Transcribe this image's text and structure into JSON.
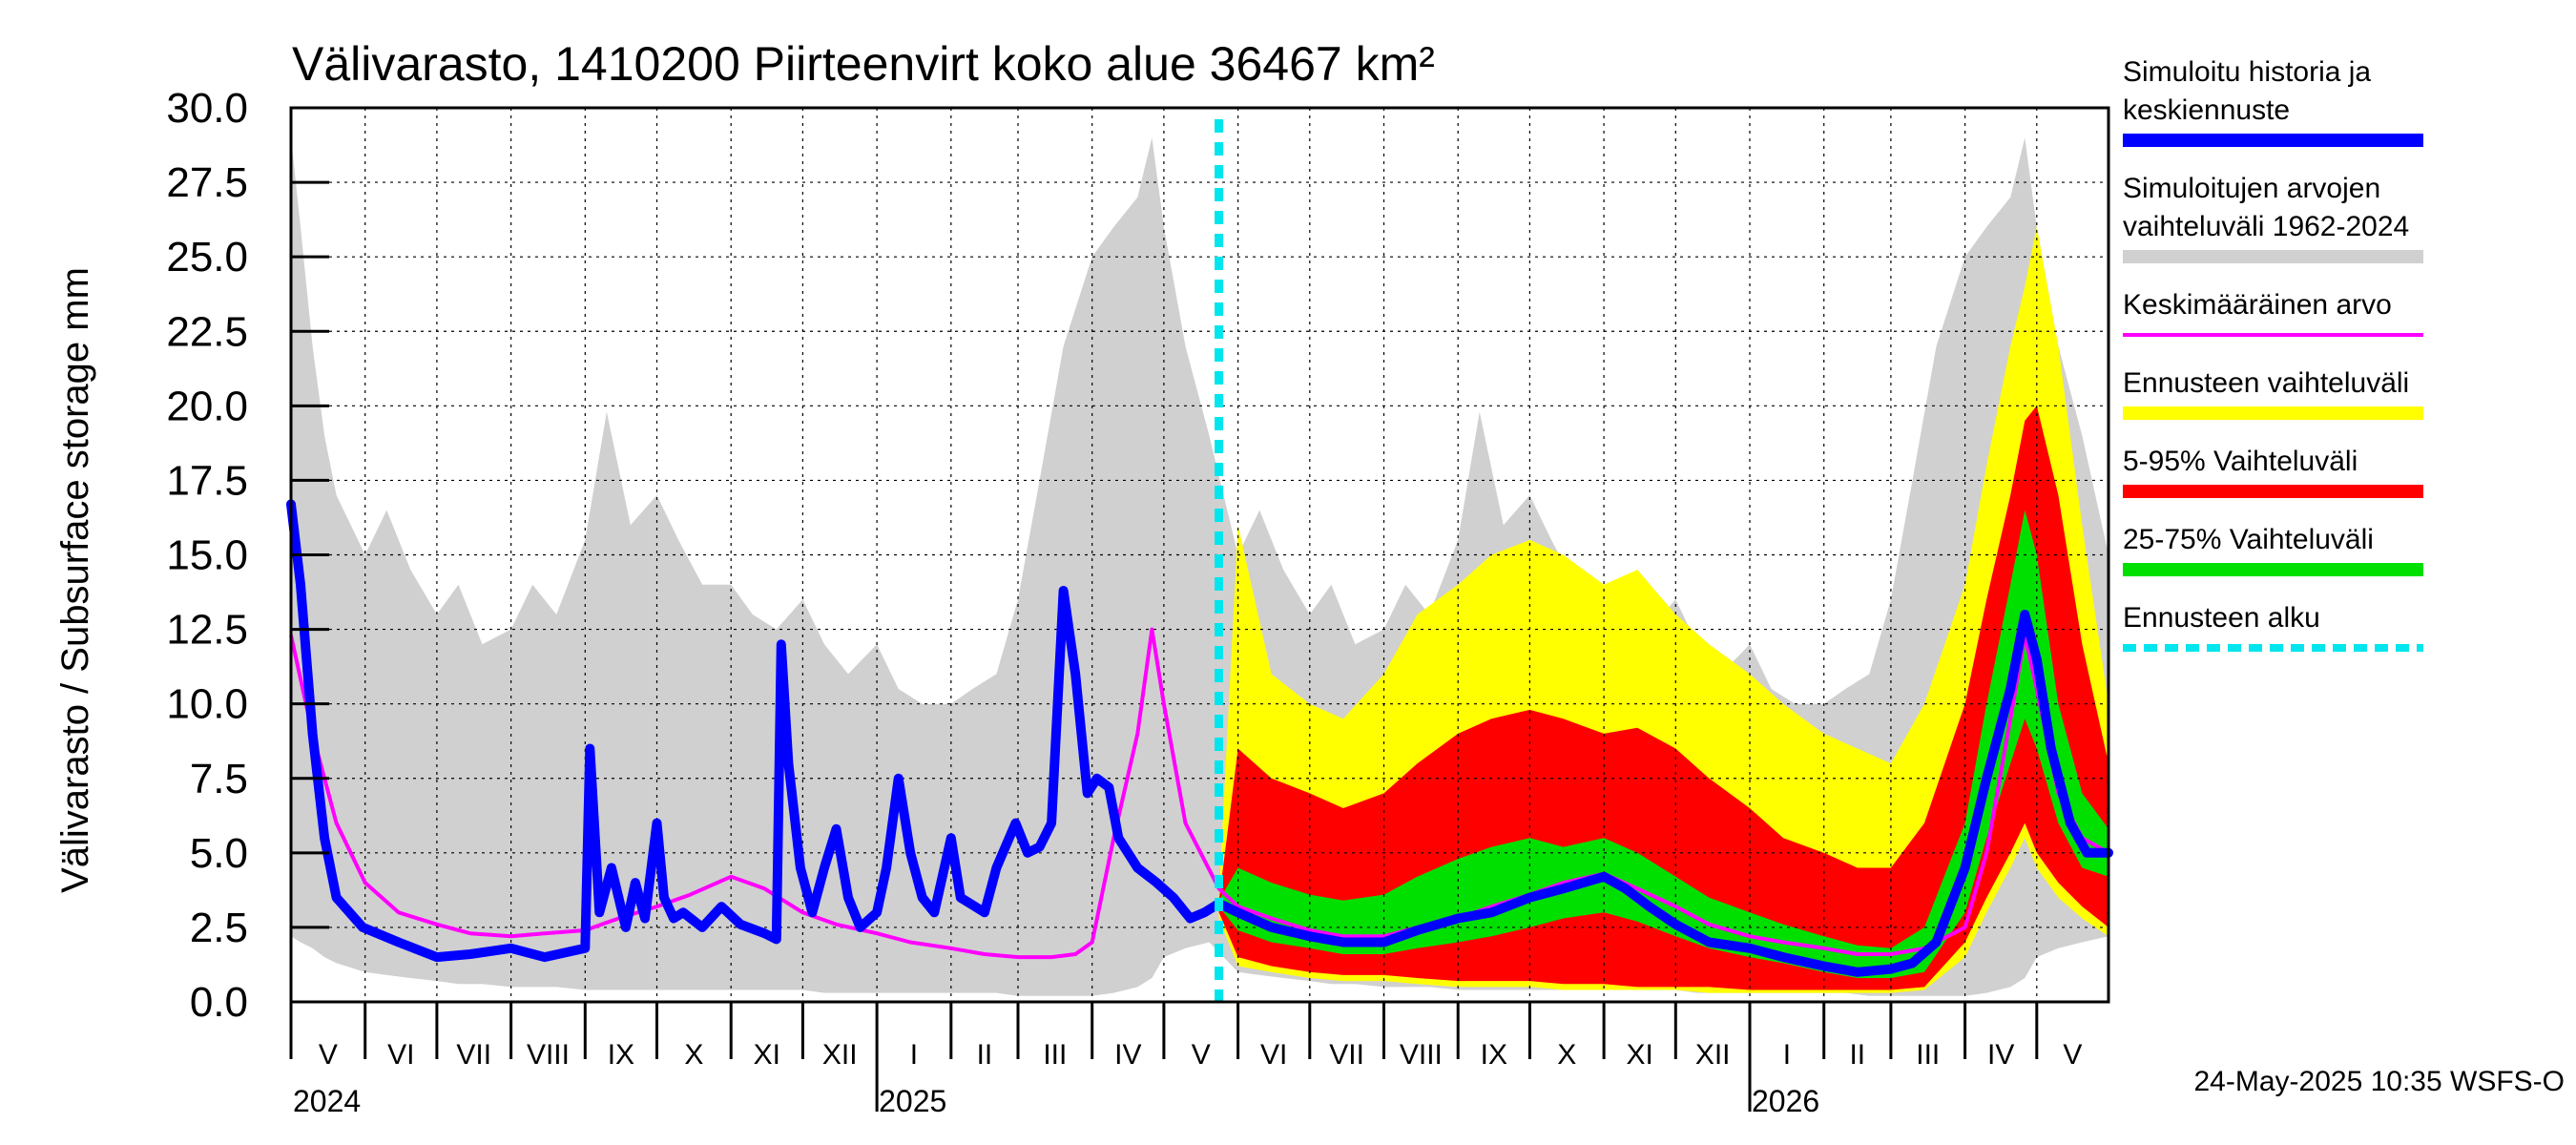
{
  "title": "Välivarasto, 1410200 Piirteenvirt koko alue 36467 km²",
  "ylabel": "Välivarasto / Subsurface storage  mm",
  "footer": "24-May-2025 10:35 WSFS-O",
  "colors": {
    "history": "#0000ff",
    "sim_range": "#d0d0d0",
    "mean": "#ff00ff",
    "forecast_range": "#ffff00",
    "p5_95": "#ff0000",
    "p25_75": "#00e000",
    "forecast_start": "#00e5ee"
  },
  "legend": [
    {
      "label": "Simuloitu historia ja keskiennuste",
      "lines": [
        "Simuloitu historia ja",
        "keskiennuste"
      ],
      "color": "#0000ff",
      "style": "thick"
    },
    {
      "label": "Simuloitujen arvojen vaihteluväli 1962-2024",
      "lines": [
        "Simuloitujen arvojen",
        "vaihteluväli 1962-2024"
      ],
      "color": "#d0d0d0",
      "style": "thick"
    },
    {
      "label": "Keskimääräinen arvo",
      "lines": [
        "Keskimääräinen arvo"
      ],
      "color": "#ff00ff",
      "style": "thin"
    },
    {
      "label": "Ennusteen vaihteluväli",
      "lines": [
        "Ennusteen vaihteluväli"
      ],
      "color": "#ffff00",
      "style": "thick"
    },
    {
      "label": "5-95% Vaihteluväli",
      "lines": [
        "5-95% Vaihteluväli"
      ],
      "color": "#ff0000",
      "style": "thick"
    },
    {
      "label": "25-75% Vaihteluväli",
      "lines": [
        "25-75% Vaihteluväli"
      ],
      "color": "#00e000",
      "style": "thick"
    },
    {
      "label": "Ennusteen alku",
      "lines": [
        "Ennusteen alku"
      ],
      "color": "#00e5ee",
      "style": "dashed"
    }
  ],
  "chart_data": {
    "type": "area",
    "ylim": [
      0,
      30
    ],
    "yticks": [
      "0.0",
      "2.5",
      "5.0",
      "7.5",
      "10.0",
      "12.5",
      "15.0",
      "17.5",
      "20.0",
      "22.5",
      "25.0",
      "27.5",
      "30.0"
    ],
    "xlim": [
      "2024-05-01",
      "2026-05-31"
    ],
    "grid": true,
    "legend_position": "right",
    "month_labels": [
      {
        "label": "V",
        "date": "2024-05-01"
      },
      {
        "label": "VI",
        "date": "2024-06-01"
      },
      {
        "label": "VII",
        "date": "2024-07-01"
      },
      {
        "label": "VIII",
        "date": "2024-08-01"
      },
      {
        "label": "IX",
        "date": "2024-09-01"
      },
      {
        "label": "X",
        "date": "2024-10-01"
      },
      {
        "label": "XI",
        "date": "2024-11-01"
      },
      {
        "label": "XII",
        "date": "2024-12-01"
      },
      {
        "label": "I",
        "date": "2025-01-01"
      },
      {
        "label": "II",
        "date": "2025-02-01"
      },
      {
        "label": "III",
        "date": "2025-03-01"
      },
      {
        "label": "IV",
        "date": "2025-04-01"
      },
      {
        "label": "V",
        "date": "2025-05-01"
      },
      {
        "label": "VI",
        "date": "2025-06-01"
      },
      {
        "label": "VII",
        "date": "2025-07-01"
      },
      {
        "label": "VIII",
        "date": "2025-08-01"
      },
      {
        "label": "IX",
        "date": "2025-09-01"
      },
      {
        "label": "X",
        "date": "2025-10-01"
      },
      {
        "label": "XI",
        "date": "2025-11-01"
      },
      {
        "label": "XII",
        "date": "2025-12-01"
      },
      {
        "label": "I",
        "date": "2026-01-01"
      },
      {
        "label": "II",
        "date": "2026-02-01"
      },
      {
        "label": "III",
        "date": "2026-03-01"
      },
      {
        "label": "IV",
        "date": "2026-04-01"
      },
      {
        "label": "V",
        "date": "2026-05-01"
      }
    ],
    "year_labels": [
      {
        "label": "2024",
        "date": "2024-05-01"
      },
      {
        "label": "2025",
        "date": "2025-01-01"
      },
      {
        "label": "2026",
        "date": "2026-01-01"
      }
    ],
    "forecast_start": "2025-05-24",
    "series": [
      {
        "name": "Simuloitu historia ja keskiennuste",
        "kind": "line",
        "x": [
          "2024-05-01",
          "2024-05-05",
          "2024-05-10",
          "2024-05-15",
          "2024-05-20",
          "2024-05-31",
          "2024-06-15",
          "2024-07-01",
          "2024-07-15",
          "2024-08-01",
          "2024-08-15",
          "2024-09-01",
          "2024-09-03",
          "2024-09-07",
          "2024-09-12",
          "2024-09-18",
          "2024-09-22",
          "2024-09-26",
          "2024-10-01",
          "2024-10-04",
          "2024-10-08",
          "2024-10-12",
          "2024-10-20",
          "2024-10-28",
          "2024-11-05",
          "2024-11-15",
          "2024-11-20",
          "2024-11-22",
          "2024-11-25",
          "2024-11-30",
          "2024-12-05",
          "2024-12-10",
          "2024-12-15",
          "2024-12-20",
          "2024-12-25",
          "2025-01-01",
          "2025-01-05",
          "2025-01-10",
          "2025-01-15",
          "2025-01-20",
          "2025-01-25",
          "2025-02-01",
          "2025-02-05",
          "2025-02-15",
          "2025-02-20",
          "2025-02-28",
          "2025-03-05",
          "2025-03-10",
          "2025-03-15",
          "2025-03-20",
          "2025-03-25",
          "2025-03-30",
          "2025-04-03",
          "2025-04-08",
          "2025-04-12",
          "2025-04-20",
          "2025-04-28",
          "2025-05-05",
          "2025-05-12",
          "2025-05-18",
          "2025-05-24",
          "2025-06-01",
          "2025-06-15",
          "2025-07-01",
          "2025-07-15",
          "2025-08-01",
          "2025-08-15",
          "2025-09-01",
          "2025-09-15",
          "2025-10-01",
          "2025-10-15",
          "2025-11-01",
          "2025-11-10",
          "2025-11-20",
          "2025-12-01",
          "2025-12-15",
          "2026-01-01",
          "2026-01-15",
          "2026-02-01",
          "2026-02-15",
          "2026-03-01",
          "2026-03-10",
          "2026-03-20",
          "2026-04-01",
          "2026-04-10",
          "2026-04-20",
          "2026-04-26",
          "2026-05-01",
          "2026-05-07",
          "2026-05-15",
          "2026-05-22",
          "2026-05-31"
        ],
        "y": [
          16.7,
          14.0,
          9.0,
          5.5,
          3.5,
          2.5,
          2.0,
          1.5,
          1.6,
          1.8,
          1.5,
          1.8,
          8.5,
          3.0,
          4.5,
          2.5,
          4.0,
          2.8,
          6.0,
          3.5,
          2.8,
          3.0,
          2.5,
          3.2,
          2.6,
          2.3,
          2.1,
          12.0,
          8.0,
          4.5,
          3.0,
          4.5,
          5.8,
          3.5,
          2.5,
          3.0,
          4.5,
          7.5,
          5.0,
          3.5,
          3.0,
          5.5,
          3.5,
          3.0,
          4.5,
          6.0,
          5.0,
          5.2,
          6.0,
          13.8,
          11.0,
          7.0,
          7.5,
          7.2,
          5.5,
          4.5,
          4.0,
          3.5,
          2.8,
          3.0,
          3.3,
          3.0,
          2.5,
          2.2,
          2.0,
          2.0,
          2.4,
          2.8,
          3.0,
          3.5,
          3.8,
          4.2,
          3.8,
          3.2,
          2.6,
          2.0,
          1.8,
          1.5,
          1.2,
          1.0,
          1.1,
          1.3,
          2.0,
          4.5,
          7.5,
          10.5,
          13.0,
          11.5,
          8.5,
          6.0,
          5.0,
          5.0
        ]
      },
      {
        "name": "Keskimääräinen arvo",
        "kind": "line",
        "x": [
          "2024-05-01",
          "2024-05-10",
          "2024-05-20",
          "2024-06-01",
          "2024-06-15",
          "2024-07-01",
          "2024-07-15",
          "2024-08-01",
          "2024-08-15",
          "2024-09-01",
          "2024-09-15",
          "2024-10-01",
          "2024-10-15",
          "2024-11-01",
          "2024-11-15",
          "2024-12-01",
          "2024-12-15",
          "2025-01-01",
          "2025-01-15",
          "2025-02-01",
          "2025-02-15",
          "2025-03-01",
          "2025-03-15",
          "2025-03-25",
          "2025-04-01",
          "2025-04-10",
          "2025-04-20",
          "2025-04-26",
          "2025-05-01",
          "2025-05-10",
          "2025-05-24",
          "2025-06-01",
          "2025-06-15",
          "2025-07-01",
          "2025-07-15",
          "2025-08-01",
          "2025-08-15",
          "2025-09-01",
          "2025-09-15",
          "2025-10-01",
          "2025-10-15",
          "2025-11-01",
          "2025-11-15",
          "2025-12-01",
          "2025-12-15",
          "2026-01-01",
          "2026-01-15",
          "2026-02-01",
          "2026-02-15",
          "2026-03-01",
          "2026-03-15",
          "2026-04-01",
          "2026-04-10",
          "2026-04-20",
          "2026-04-26",
          "2026-05-01",
          "2026-05-10",
          "2026-05-20",
          "2026-05-31"
        ],
        "y": [
          12.3,
          9.0,
          6.0,
          4.0,
          3.0,
          2.6,
          2.3,
          2.2,
          2.3,
          2.4,
          2.8,
          3.2,
          3.6,
          4.2,
          3.8,
          3.0,
          2.6,
          2.3,
          2.0,
          1.8,
          1.6,
          1.5,
          1.5,
          1.6,
          2.0,
          5.5,
          9.0,
          12.5,
          10.0,
          6.0,
          3.8,
          3.2,
          2.8,
          2.4,
          2.2,
          2.2,
          2.5,
          2.8,
          3.2,
          3.6,
          4.0,
          4.3,
          3.8,
          3.2,
          2.6,
          2.2,
          2.0,
          1.8,
          1.6,
          1.6,
          1.8,
          2.5,
          5.0,
          9.5,
          12.3,
          10.5,
          7.0,
          5.5,
          5.0
        ]
      },
      {
        "name": "Simuloitujen arvojen vaihteluväli 1962-2024",
        "kind": "band",
        "x": [
          "2024-05-01",
          "2024-05-05",
          "2024-05-10",
          "2024-05-15",
          "2024-05-20",
          "2024-06-01",
          "2024-06-10",
          "2024-06-20",
          "2024-07-01",
          "2024-07-10",
          "2024-07-20",
          "2024-08-01",
          "2024-08-10",
          "2024-08-20",
          "2024-09-01",
          "2024-09-10",
          "2024-09-20",
          "2024-10-01",
          "2024-10-10",
          "2024-10-20",
          "2024-11-01",
          "2024-11-10",
          "2024-11-20",
          "2024-12-01",
          "2024-12-10",
          "2024-12-20",
          "2025-01-01",
          "2025-01-10",
          "2025-01-20",
          "2025-02-01",
          "2025-02-10",
          "2025-02-20",
          "2025-03-01",
          "2025-03-10",
          "2025-03-20",
          "2025-04-01",
          "2025-04-10",
          "2025-04-20",
          "2025-04-26",
          "2025-05-01",
          "2025-05-10",
          "2025-05-20",
          "2025-06-01",
          "2025-06-10",
          "2025-06-20",
          "2025-07-01",
          "2025-07-10",
          "2025-07-20",
          "2025-08-01",
          "2025-08-10",
          "2025-08-20",
          "2025-09-01",
          "2025-09-10",
          "2025-09-20",
          "2025-10-01",
          "2025-10-10",
          "2025-10-20",
          "2025-11-01",
          "2025-11-10",
          "2025-11-20",
          "2025-12-01",
          "2025-12-10",
          "2025-12-20",
          "2026-01-01",
          "2026-01-10",
          "2026-01-20",
          "2026-02-01",
          "2026-02-10",
          "2026-02-20",
          "2026-03-01",
          "2026-03-10",
          "2026-03-20",
          "2026-04-01",
          "2026-04-10",
          "2026-04-20",
          "2026-04-26",
          "2026-05-01",
          "2026-05-10",
          "2026-05-20",
          "2026-05-31"
        ],
        "low": [
          2.2,
          2.0,
          1.8,
          1.5,
          1.3,
          1.0,
          0.9,
          0.8,
          0.7,
          0.6,
          0.6,
          0.5,
          0.5,
          0.5,
          0.4,
          0.4,
          0.4,
          0.4,
          0.4,
          0.4,
          0.4,
          0.4,
          0.4,
          0.4,
          0.3,
          0.3,
          0.3,
          0.3,
          0.3,
          0.3,
          0.3,
          0.3,
          0.2,
          0.2,
          0.2,
          0.2,
          0.3,
          0.5,
          0.8,
          1.5,
          1.8,
          2.0,
          1.0,
          0.9,
          0.8,
          0.7,
          0.6,
          0.6,
          0.5,
          0.5,
          0.5,
          0.4,
          0.4,
          0.4,
          0.4,
          0.4,
          0.4,
          0.4,
          0.4,
          0.4,
          0.4,
          0.3,
          0.3,
          0.3,
          0.3,
          0.3,
          0.3,
          0.3,
          0.2,
          0.2,
          0.2,
          0.2,
          0.2,
          0.3,
          0.5,
          0.8,
          1.5,
          1.8,
          2.0,
          2.2
        ],
        "high": [
          29.0,
          26.0,
          22.0,
          19.0,
          17.0,
          15.0,
          16.5,
          14.5,
          13.0,
          14.0,
          12.0,
          12.5,
          14.0,
          13.0,
          15.5,
          19.8,
          16.0,
          17.0,
          15.5,
          14.0,
          14.0,
          13.0,
          12.5,
          13.5,
          12.0,
          11.0,
          12.0,
          10.5,
          10.0,
          10.0,
          10.5,
          11.0,
          13.5,
          17.5,
          22.0,
          25.0,
          26.0,
          27.0,
          29.0,
          26.0,
          22.0,
          19.0,
          15.0,
          16.5,
          14.5,
          13.0,
          14.0,
          12.0,
          12.5,
          14.0,
          13.0,
          15.5,
          19.8,
          16.0,
          17.0,
          15.5,
          14.0,
          14.0,
          13.0,
          12.5,
          13.5,
          12.0,
          11.0,
          12.0,
          10.5,
          10.0,
          10.0,
          10.5,
          11.0,
          13.5,
          17.5,
          22.0,
          25.0,
          26.0,
          27.0,
          29.0,
          26.0,
          22.0,
          19.0,
          15.0
        ]
      },
      {
        "name": "Ennusteen vaihteluväli",
        "kind": "band",
        "x": [
          "2025-05-24",
          "2025-06-01",
          "2025-06-15",
          "2025-07-01",
          "2025-07-15",
          "2025-08-01",
          "2025-08-15",
          "2025-09-01",
          "2025-09-15",
          "2025-10-01",
          "2025-10-15",
          "2025-11-01",
          "2025-11-15",
          "2025-12-01",
          "2025-12-15",
          "2026-01-01",
          "2026-01-15",
          "2026-02-01",
          "2026-02-15",
          "2026-03-01",
          "2026-03-15",
          "2026-04-01",
          "2026-04-10",
          "2026-04-20",
          "2026-04-26",
          "2026-05-01",
          "2026-05-10",
          "2026-05-20",
          "2026-05-31"
        ],
        "low": [
          2.8,
          1.2,
          1.0,
          0.8,
          0.7,
          0.7,
          0.6,
          0.5,
          0.5,
          0.5,
          0.4,
          0.4,
          0.4,
          0.4,
          0.3,
          0.3,
          0.3,
          0.3,
          0.3,
          0.3,
          0.4,
          1.5,
          3.0,
          4.5,
          5.5,
          4.5,
          3.5,
          2.8,
          2.2
        ],
        "high": [
          3.5,
          16.0,
          11.0,
          10.0,
          9.5,
          11.0,
          13.0,
          14.0,
          15.0,
          15.5,
          15.0,
          14.0,
          14.5,
          13.0,
          12.0,
          11.0,
          10.0,
          9.0,
          8.5,
          8.0,
          10.0,
          14.0,
          18.0,
          22.0,
          24.0,
          26.0,
          22.0,
          16.0,
          10.0
        ]
      },
      {
        "name": "5-95% Vaihteluväli",
        "kind": "band",
        "x": [
          "2025-05-24",
          "2025-06-01",
          "2025-06-15",
          "2025-07-01",
          "2025-07-15",
          "2025-08-01",
          "2025-08-15",
          "2025-09-01",
          "2025-09-15",
          "2025-10-01",
          "2025-10-15",
          "2025-11-01",
          "2025-11-15",
          "2025-12-01",
          "2025-12-15",
          "2026-01-01",
          "2026-01-15",
          "2026-02-01",
          "2026-02-15",
          "2026-03-01",
          "2026-03-15",
          "2026-04-01",
          "2026-04-10",
          "2026-04-20",
          "2026-04-26",
          "2026-05-01",
          "2026-05-10",
          "2026-05-20",
          "2026-05-31"
        ],
        "low": [
          3.0,
          1.5,
          1.2,
          1.0,
          0.9,
          0.9,
          0.8,
          0.7,
          0.7,
          0.7,
          0.6,
          0.6,
          0.5,
          0.5,
          0.5,
          0.4,
          0.4,
          0.4,
          0.4,
          0.4,
          0.5,
          2.0,
          3.5,
          5.0,
          6.0,
          5.0,
          4.0,
          3.2,
          2.5
        ],
        "high": [
          3.4,
          8.5,
          7.5,
          7.0,
          6.5,
          7.0,
          8.0,
          9.0,
          9.5,
          9.8,
          9.5,
          9.0,
          9.2,
          8.5,
          7.5,
          6.5,
          5.5,
          5.0,
          4.5,
          4.5,
          6.0,
          10.0,
          13.5,
          17.0,
          19.5,
          20.0,
          17.0,
          12.0,
          8.0
        ]
      },
      {
        "name": "25-75% Vaihteluväli",
        "kind": "band",
        "x": [
          "2025-05-24",
          "2025-06-01",
          "2025-06-15",
          "2025-07-01",
          "2025-07-15",
          "2025-08-01",
          "2025-08-15",
          "2025-09-01",
          "2025-09-15",
          "2025-10-01",
          "2025-10-15",
          "2025-11-01",
          "2025-11-15",
          "2025-12-01",
          "2025-12-15",
          "2026-01-01",
          "2026-01-15",
          "2026-02-01",
          "2026-02-15",
          "2026-03-01",
          "2026-03-15",
          "2026-04-01",
          "2026-04-10",
          "2026-04-20",
          "2026-04-26",
          "2026-05-01",
          "2026-05-10",
          "2026-05-20",
          "2026-05-31"
        ],
        "low": [
          3.2,
          2.4,
          2.0,
          1.8,
          1.6,
          1.6,
          1.8,
          2.0,
          2.2,
          2.5,
          2.8,
          3.0,
          2.7,
          2.2,
          1.8,
          1.5,
          1.3,
          1.0,
          0.8,
          0.8,
          1.0,
          3.0,
          5.5,
          8.0,
          9.5,
          8.5,
          6.0,
          4.5,
          4.2
        ],
        "high": [
          3.4,
          4.5,
          4.0,
          3.6,
          3.4,
          3.6,
          4.2,
          4.8,
          5.2,
          5.5,
          5.2,
          5.5,
          5.0,
          4.2,
          3.5,
          3.0,
          2.6,
          2.2,
          1.9,
          1.8,
          2.5,
          6.0,
          10.0,
          14.0,
          16.5,
          15.0,
          10.0,
          7.0,
          5.8
        ]
      }
    ]
  }
}
